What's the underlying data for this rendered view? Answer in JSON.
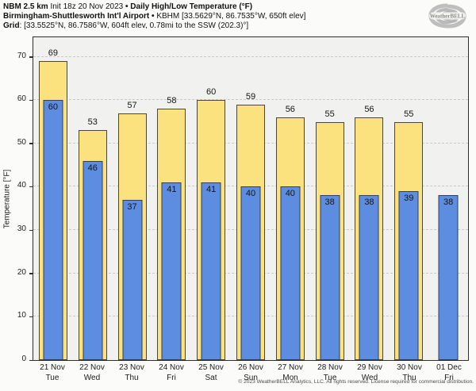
{
  "header": {
    "model": "NBM 2.5 km",
    "init": "Init 18z 20 Nov 2023",
    "sep1": "•",
    "product": "Daily High/Low Temperature (°F)",
    "station": "Birmingham-Shuttlesworth Int'l Airport",
    "sep2": "•",
    "station_details": "KBHM [33.5629°N, 86.7535°W, 650ft elev]",
    "grid_label": "Grid",
    "grid_details": ": [33.5525°N, 86.7586°W, 604ft elev, 0.78mi to the SSW (202.3)°]"
  },
  "logo": {
    "text": "WeatherBELL",
    "sub": "analytics"
  },
  "footer": "© 2023 WeatherBELL Analytics, LLC. All rights reserved. License required for commercial distribution.",
  "chart_data": {
    "type": "bar",
    "title": "NBM 2.5 km Daily High/Low Temperature (°F) — KBHM Birmingham-Shuttlesworth Int'l Airport",
    "xlabel": "",
    "ylabel": "Temperature [°F]",
    "ylim": [
      0,
      74.5
    ],
    "yticks": [
      0,
      10,
      20,
      30,
      40,
      50,
      60,
      70
    ],
    "grid": "horizontal-dashed",
    "legend": "none",
    "categories": [
      {
        "date": "21 Nov",
        "day": "Tue"
      },
      {
        "date": "22 Nov",
        "day": "Wed"
      },
      {
        "date": "23 Nov",
        "day": "Thu"
      },
      {
        "date": "24 Nov",
        "day": "Fri"
      },
      {
        "date": "25 Nov",
        "day": "Sat"
      },
      {
        "date": "26 Nov",
        "day": "Sun"
      },
      {
        "date": "27 Nov",
        "day": "Mon"
      },
      {
        "date": "28 Nov",
        "day": "Tue"
      },
      {
        "date": "29 Nov",
        "day": "Wed"
      },
      {
        "date": "30 Nov",
        "day": "Thu"
      },
      {
        "date": "01 Dec",
        "day": "Fri"
      }
    ],
    "series": [
      {
        "name": "Daily High",
        "color": "#fbe27e",
        "border": "#4a463a",
        "values": [
          69,
          53,
          57,
          58,
          60,
          59,
          56,
          55,
          56,
          55,
          null
        ]
      },
      {
        "name": "Daily Low",
        "color": "#5d8de0",
        "border": "#32405c",
        "values": [
          60,
          46,
          37,
          41,
          41,
          40,
          40,
          38,
          38,
          39,
          38
        ]
      }
    ]
  }
}
